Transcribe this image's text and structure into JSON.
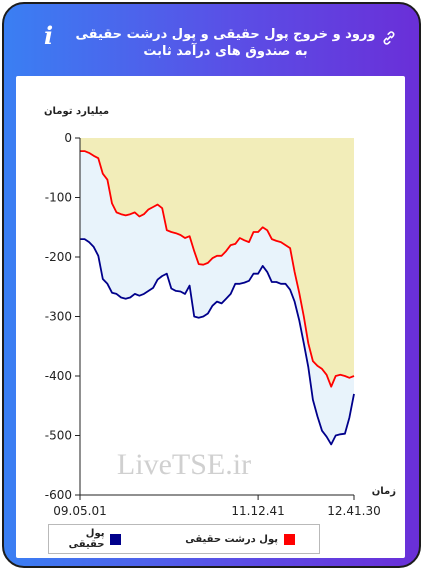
{
  "header": {
    "title": "ورود و خروج پول حقیقی و پول درشت حقیقی به صندوق های درآمد ثابت",
    "info_icon": "i",
    "link_icon": "link-icon"
  },
  "watermark": "LiveTSE.ir",
  "legend": {
    "items": [
      {
        "label": "پول حقیقی",
        "color": "#00008b"
      },
      {
        "label": "پول درشت حقیقی",
        "color": "#ff0000"
      }
    ]
  },
  "colors": {
    "card_gradient_start": "#3a7ff3",
    "card_gradient_end": "#6a2fd8",
    "area_top_fill": "#f2edb9",
    "area_between_fill": "#e8f3fb",
    "real_money": "#00008b",
    "big_real_money": "#ff0000"
  },
  "chart_data": {
    "type": "line",
    "ylabel": "میلیارد تومان",
    "xlabel": "زمان",
    "ylim": [
      -600,
      0
    ],
    "yticks": [
      0,
      -100,
      -200,
      -300,
      -400,
      -500,
      -600
    ],
    "ytick_labels": [
      "0",
      "-100",
      "-200",
      "-300",
      "-400",
      "-500",
      "-600"
    ],
    "xticks": [
      "09.05.01",
      "11.12.41",
      "12.41.30"
    ],
    "grid": false,
    "legend_position": "bottom",
    "series": [
      {
        "name": "پول حقیقی",
        "color": "#00008b",
        "values": [
          -170,
          -170,
          -175,
          -183,
          -198,
          -237,
          -245,
          -260,
          -262,
          -268,
          -270,
          -268,
          -262,
          -265,
          -262,
          -257,
          -252,
          -238,
          -232,
          -228,
          -253,
          -257,
          -258,
          -262,
          -248,
          -300,
          -302,
          -300,
          -295,
          -282,
          -275,
          -278,
          -270,
          -262,
          -245,
          -245,
          -243,
          -240,
          -228,
          -228,
          -215,
          -225,
          -242,
          -242,
          -245,
          -245,
          -255,
          -275,
          -306,
          -345,
          -385,
          -440,
          -468,
          -492,
          -502,
          -515,
          -500,
          -498,
          -497,
          -470,
          -430
        ]
      },
      {
        "name": "پول درشت حقیقی",
        "color": "#ff0000",
        "values": [
          -22,
          -22,
          -25,
          -30,
          -34,
          -60,
          -70,
          -110,
          -125,
          -128,
          -130,
          -128,
          -125,
          -132,
          -128,
          -120,
          -116,
          -112,
          -118,
          -155,
          -158,
          -160,
          -163,
          -168,
          -165,
          -190,
          -212,
          -213,
          -210,
          -202,
          -198,
          -198,
          -190,
          -180,
          -178,
          -168,
          -172,
          -175,
          -158,
          -158,
          -150,
          -155,
          -170,
          -173,
          -175,
          -180,
          -185,
          -225,
          -260,
          -300,
          -345,
          -375,
          -383,
          -388,
          -398,
          -418,
          -400,
          -398,
          -400,
          -403,
          -400
        ]
      }
    ]
  }
}
